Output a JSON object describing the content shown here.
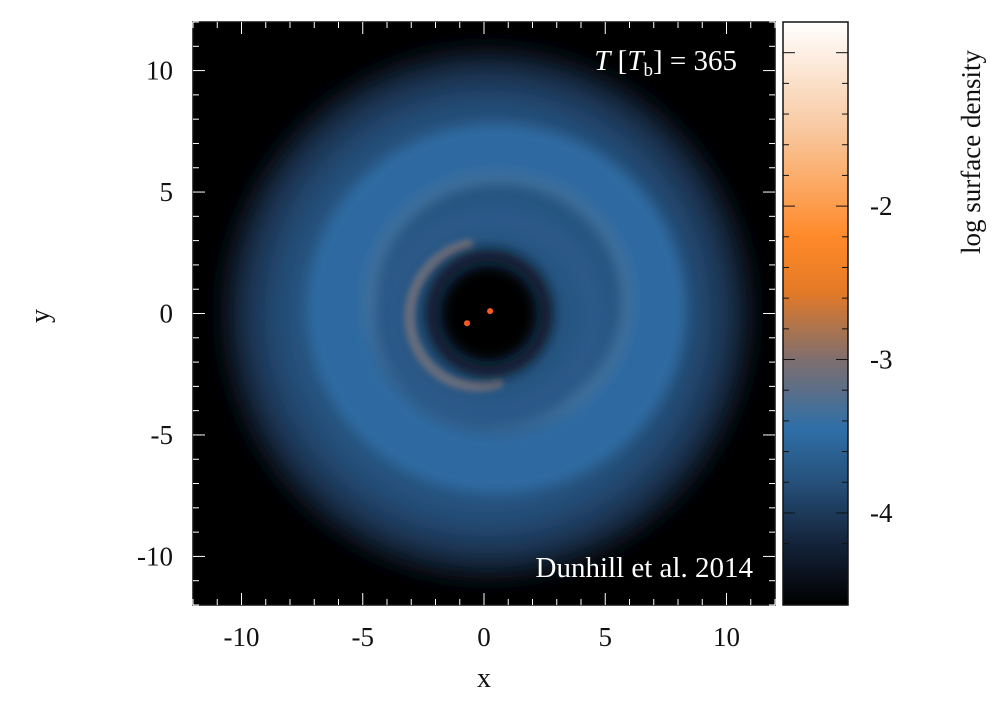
{
  "chart_data": {
    "type": "heatmap",
    "title": "",
    "xlabel": "x",
    "ylabel": "y",
    "xlim": [
      -12,
      12
    ],
    "ylim": [
      -12,
      12
    ],
    "x_ticks": [
      -10,
      -5,
      0,
      5,
      10
    ],
    "y_ticks": [
      -10,
      -5,
      0,
      5,
      10
    ],
    "x_tick_labels": [
      "-10",
      "-5",
      "0",
      "5",
      "10"
    ],
    "y_tick_labels": [
      "-10",
      "-5",
      "0",
      "5",
      "10"
    ],
    "grid": false,
    "background_color": "#000000",
    "colorbar": {
      "label": "log surface density",
      "range": [
        -4.6,
        -0.8
      ],
      "ticks": [
        -2,
        -3,
        -4
      ],
      "tick_labels": [
        "-2",
        "-3",
        "-4"
      ],
      "colormap": [
        {
          "value": -4.6,
          "color": "#000000"
        },
        {
          "value": -4.2,
          "color": "#14233a"
        },
        {
          "value": -3.8,
          "color": "#26507a"
        },
        {
          "value": -3.45,
          "color": "#2f6fa8"
        },
        {
          "value": -3.0,
          "color": "#7f6e6e"
        },
        {
          "value": -2.55,
          "color": "#e57a26"
        },
        {
          "value": -2.2,
          "color": "#ff8a2a"
        },
        {
          "value": -1.5,
          "color": "#f8c8a0"
        },
        {
          "value": -0.8,
          "color": "#ffffff"
        }
      ]
    },
    "features": {
      "disc": {
        "center": [
          0,
          0
        ],
        "outer_radius": 11,
        "inner_cavity_radius": 2
      },
      "bright_ring": {
        "radius": 5.3,
        "eccentric": true
      },
      "spiral_arm": {
        "peak_log_density": -3.1
      },
      "binary_stars": [
        {
          "x": -0.7,
          "y": -0.4,
          "color": "#ff5a1e"
        },
        {
          "x": 0.25,
          "y": 0.1,
          "color": "#ff5a1e"
        }
      ]
    },
    "annotations": [
      {
        "label_italic_T": "T",
        "bracket_open": " [",
        "unit_italic": "T",
        "unit_subscript": "b",
        "bracket_close": "] = 365",
        "position": "top-right"
      },
      {
        "text": "Dunhill et al. 2014",
        "position": "bottom-right"
      }
    ]
  }
}
